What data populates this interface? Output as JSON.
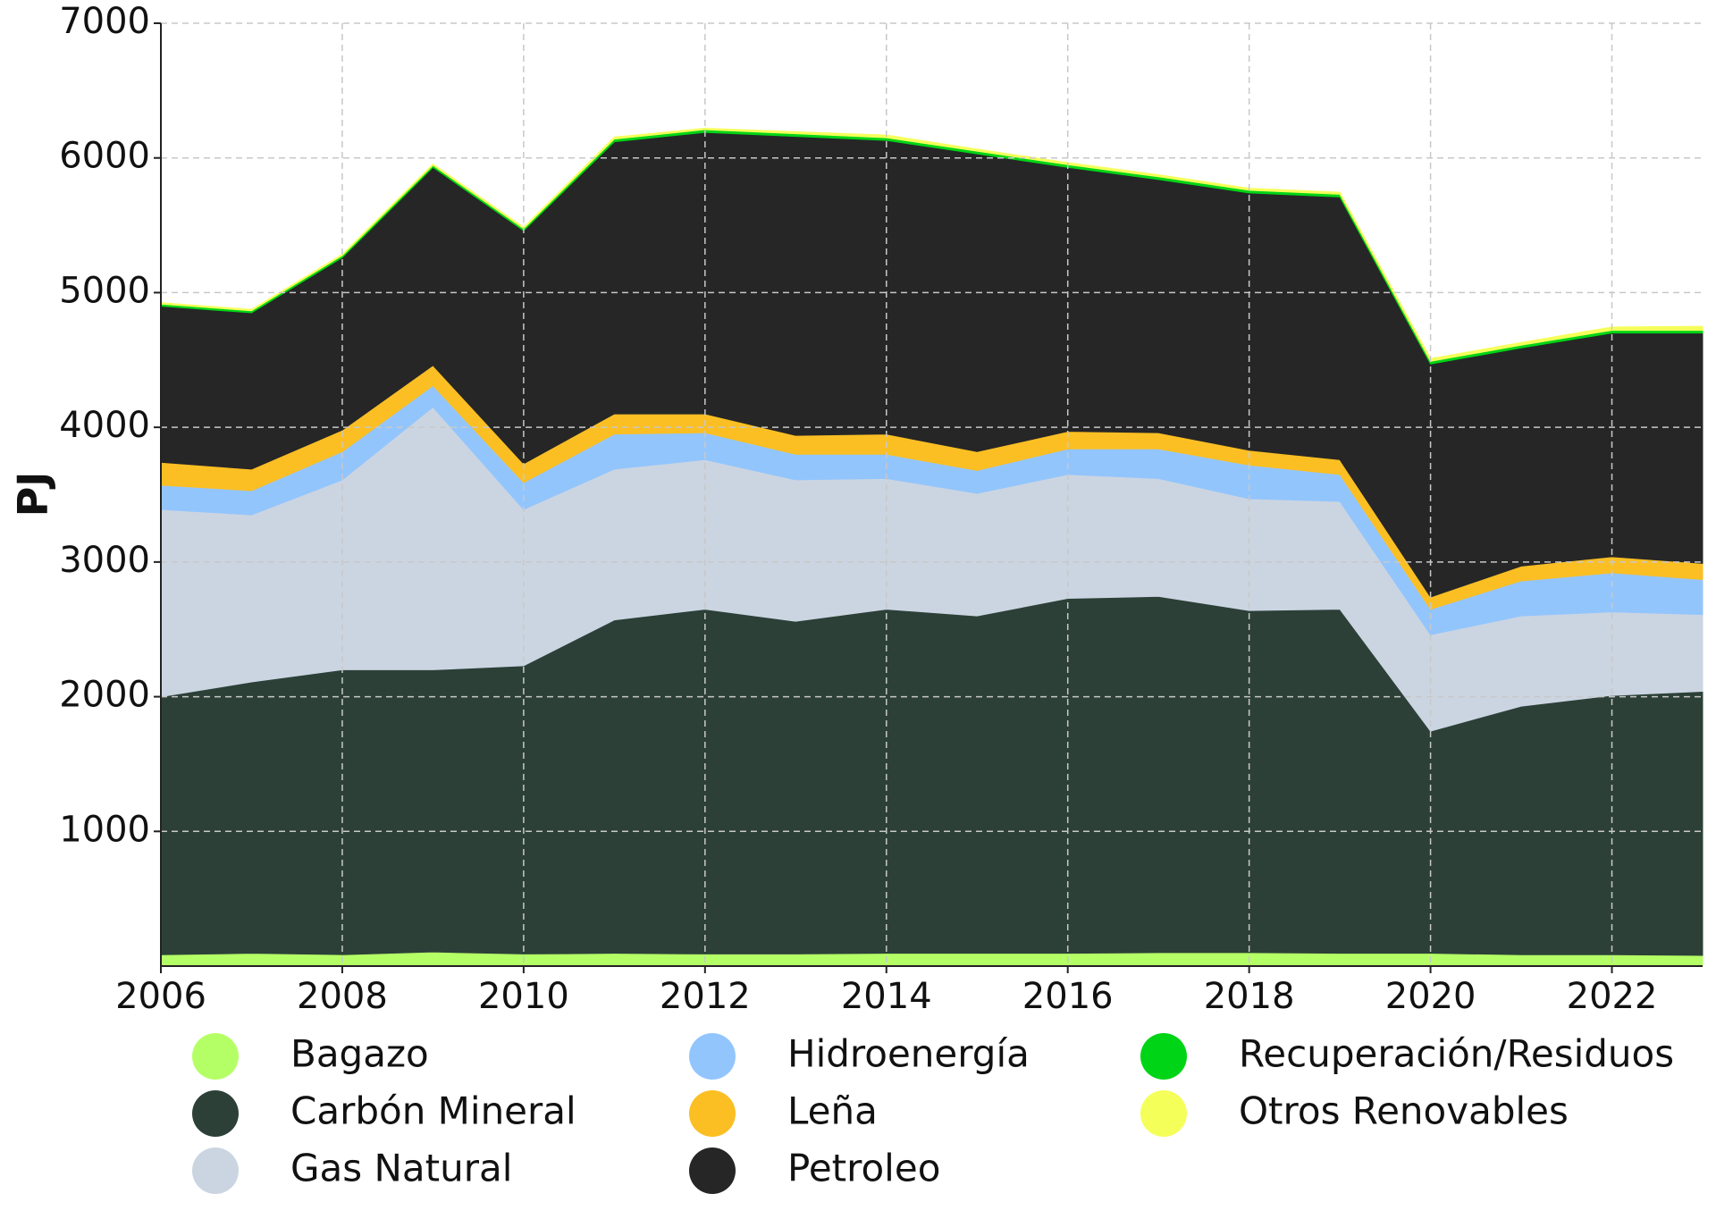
{
  "chart_data": {
    "type": "stacked_area",
    "y_label": "PJ",
    "x": [
      2006,
      2007,
      2008,
      2009,
      2010,
      2011,
      2012,
      2013,
      2014,
      2015,
      2016,
      2017,
      2018,
      2019,
      2020,
      2021,
      2022,
      2023
    ],
    "xlim": [
      2006,
      2023
    ],
    "xticks": [
      2006,
      2008,
      2010,
      2012,
      2014,
      2016,
      2018,
      2020,
      2022
    ],
    "ylim": [
      0,
      7000
    ],
    "yticks": [
      1000,
      2000,
      3000,
      4000,
      5000,
      6000,
      7000
    ],
    "grid": true,
    "legend": "bottom",
    "series": [
      {
        "name": "Bagazo",
        "color": "#b5ff66",
        "values": [
          85,
          95,
          85,
          105,
          90,
          95,
          90,
          90,
          95,
          95,
          95,
          100,
          100,
          95,
          95,
          85,
          85,
          80
        ]
      },
      {
        "name": "Carbón Mineral",
        "color": "#2c4038",
        "values": [
          1915,
          2015,
          2115,
          2095,
          2140,
          2475,
          2560,
          2470,
          2555,
          2505,
          2635,
          2645,
          2540,
          2555,
          1650,
          1845,
          1925,
          1960
        ]
      },
      {
        "name": "Gas Natural",
        "color": "#cbd5e1",
        "values": [
          1390,
          1240,
          1410,
          1950,
          1160,
          1120,
          1110,
          1050,
          970,
          910,
          920,
          875,
          830,
          800,
          715,
          670,
          620,
          570
        ]
      },
      {
        "name": "Hidroenergía",
        "color": "#93c5fd",
        "values": [
          180,
          180,
          210,
          160,
          200,
          260,
          200,
          190,
          180,
          170,
          190,
          220,
          250,
          200,
          190,
          260,
          290,
          260
        ]
      },
      {
        "name": "Leña",
        "color": "#fbbf24",
        "values": [
          170,
          160,
          160,
          150,
          140,
          150,
          140,
          140,
          150,
          140,
          130,
          120,
          110,
          110,
          90,
          110,
          120,
          120
        ]
      },
      {
        "name": "Petroleo",
        "color": "#262626",
        "values": [
          1160,
          1160,
          1280,
          1470,
          1730,
          2020,
          2090,
          2220,
          2180,
          2210,
          1960,
          1880,
          1910,
          1950,
          1730,
          1620,
          1660,
          1710
        ]
      },
      {
        "name": "Recuperación/Residuos",
        "color": "#00d416",
        "values": [
          15,
          15,
          15,
          15,
          15,
          20,
          20,
          20,
          20,
          20,
          20,
          20,
          20,
          20,
          20,
          20,
          20,
          20
        ]
      },
      {
        "name": "Otros Renovables",
        "color": "#f5ff5a",
        "values": [
          10,
          10,
          10,
          10,
          10,
          15,
          10,
          15,
          20,
          15,
          15,
          15,
          15,
          15,
          20,
          20,
          25,
          30
        ]
      }
    ]
  }
}
